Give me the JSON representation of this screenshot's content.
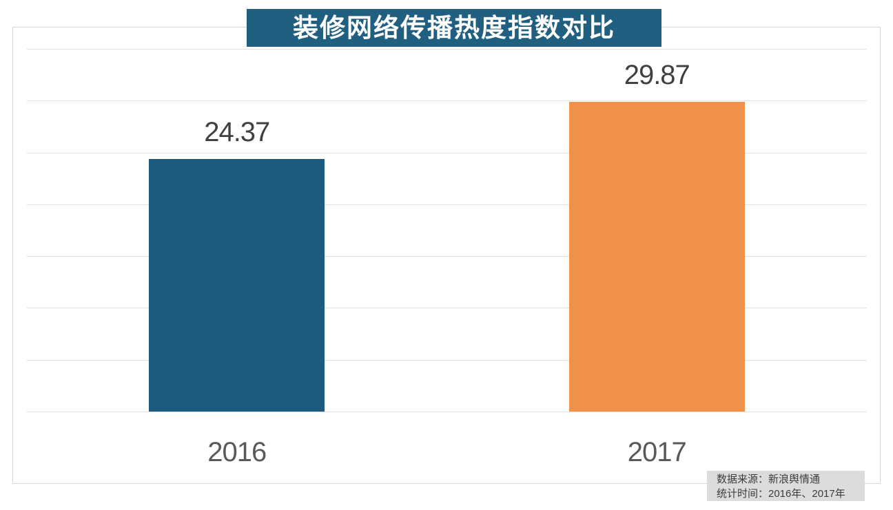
{
  "title": "装修网络传播热度指数对比",
  "source_note": {
    "line1": "数据来源：新浪舆情通",
    "line2": "统计时间：2016年、2017年"
  },
  "colors": {
    "title_bg": "#215F80",
    "bar_2016": "#1D5B7E",
    "bar_2017": "#F0914B",
    "gridline": "#E2E2E2",
    "chart_border": "#D9D9D9",
    "value_label_text": "#404040",
    "axis_label_text": "#595959",
    "note_bg": "#DCDCDC",
    "note_text": "#3C3C3C",
    "title_text": "#FFFFFF"
  },
  "chart_data": {
    "type": "bar",
    "title": "装修网络传播热度指数对比",
    "categories": [
      "2016",
      "2017"
    ],
    "values": [
      24.37,
      29.87
    ],
    "value_labels": [
      "24.37",
      "29.87"
    ],
    "bar_colors": [
      "#1D5B7E",
      "#F0914B"
    ],
    "xlabel": "",
    "ylabel": "",
    "ylim": [
      0,
      35
    ],
    "gridline_step": 5,
    "grid": "horizontal-only",
    "y_tick_labels_visible": false,
    "legend": "none",
    "annotations": [
      "数据来源：新浪舆情通",
      "统计时间：2016年、2017年"
    ]
  }
}
